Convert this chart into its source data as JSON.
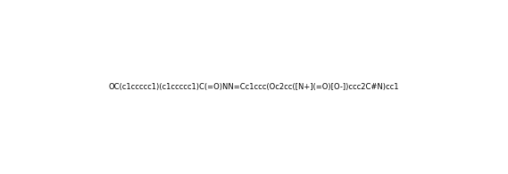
{
  "smiles": "OC(c1ccccc1)(c1ccccc1)C(=O)NN=Cc1ccc(Oc2cc([N+](=O)[O-])ccc2C#N)cc1",
  "title": "",
  "bg_color": "#ffffff",
  "line_color": "#1a1a1a",
  "figsize": [
    5.69,
    1.95
  ],
  "dpi": 100
}
